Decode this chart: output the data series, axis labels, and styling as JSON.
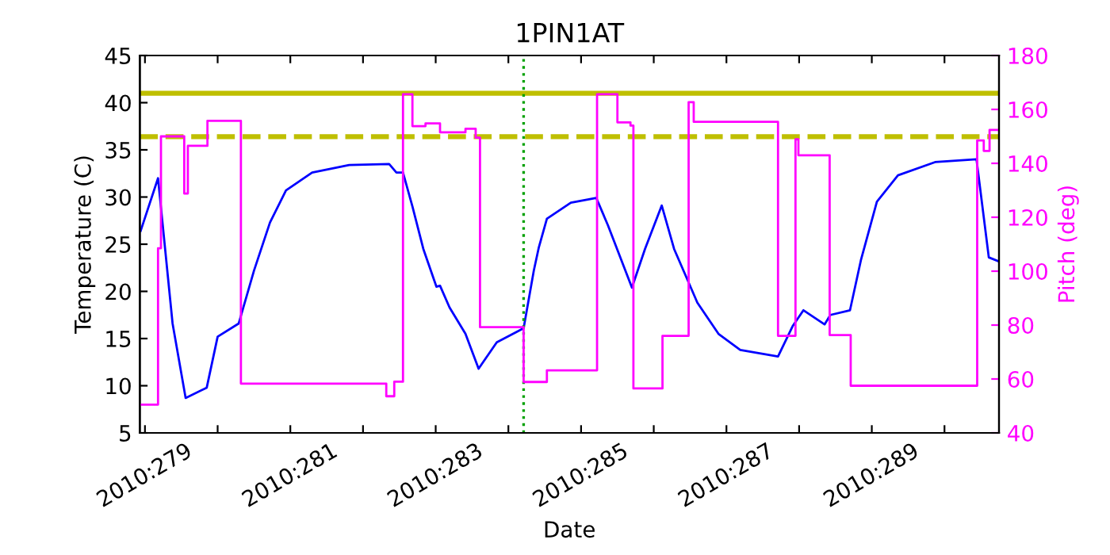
{
  "chart_data": {
    "type": "line",
    "title": "1PIN1AT",
    "xlabel": "Date",
    "ylabel": "Temperature (C)",
    "y2label": "Pitch (deg)",
    "xlim": [
      "2010-10-05T22:19",
      "2010-10-17T18:00"
    ],
    "xticks": [
      {
        "value": "2010-10-06",
        "label": "2010:279"
      },
      {
        "value": "2010-10-07",
        "label": null
      },
      {
        "value": "2010-10-08",
        "label": "2010:281"
      },
      {
        "value": "2010-10-09",
        "label": null
      },
      {
        "value": "2010-10-10",
        "label": "2010:283"
      },
      {
        "value": "2010-10-11",
        "label": null
      },
      {
        "value": "2010-10-12",
        "label": "2010:285"
      },
      {
        "value": "2010-10-13",
        "label": null
      },
      {
        "value": "2010-10-14",
        "label": "2010:287"
      },
      {
        "value": "2010-10-15",
        "label": null
      },
      {
        "value": "2010-10-16",
        "label": "2010:289"
      },
      {
        "value": "2010-10-17",
        "label": null
      }
    ],
    "ylim": [
      5,
      45
    ],
    "yticks": [
      5,
      10,
      15,
      20,
      25,
      30,
      35,
      40,
      45
    ],
    "y2lim": [
      40,
      180
    ],
    "y2ticks": [
      40,
      60,
      80,
      100,
      120,
      140,
      160,
      180
    ],
    "grid": false,
    "marker": "none",
    "line_style": "solid",
    "series": [
      {
        "color": "#0000ff",
        "x": [
          "2010-10-05T22:34",
          "2010-10-06T04:19",
          "2010-10-06T09:07",
          "2010-10-06T13:26",
          "2010-10-06T20:24",
          "2010-10-07T00:00",
          "2010-10-07T06:58",
          "2010-10-07T12:00",
          "2010-10-07T17:17",
          "2010-10-07T22:34",
          "2010-10-08T07:12",
          "2010-10-08T19:26",
          "2010-10-09T08:38",
          "2010-10-09T11:02",
          "2010-10-09T13:12",
          "2010-10-09T16:19",
          "2010-10-09T19:55",
          "2010-10-10T00:14",
          "2010-10-10T01:26",
          "2010-10-10T04:34",
          "2010-10-10T09:50",
          "2010-10-10T14:10",
          "2010-10-10T20:10",
          "2010-10-11T05:02",
          "2010-10-11T08:24",
          "2010-10-11T10:05",
          "2010-10-11T12:43",
          "2010-10-11T20:38",
          "2010-10-12T05:02",
          "2010-10-12T08:53",
          "2010-10-12T16:48",
          "2010-10-12T21:07",
          "2010-10-13T02:38",
          "2010-10-13T06:43",
          "2010-10-13T11:02",
          "2010-10-13T14:24",
          "2010-10-13T21:22",
          "2010-10-14T04:34",
          "2010-10-14T17:02",
          "2010-10-14T21:50",
          "2010-10-15T01:26",
          "2010-10-15T08:24",
          "2010-10-15T10:19",
          "2010-10-15T16:48",
          "2010-10-15T20:24",
          "2010-10-16T01:41",
          "2010-10-16T08:38",
          "2010-10-16T20:53",
          "2010-10-17T10:34",
          "2010-10-17T14:38",
          "2010-10-17T17:46"
        ],
        "values": [
          26.4,
          32.0,
          16.6,
          8.7,
          9.8,
          15.2,
          16.6,
          22.2,
          27.3,
          30.7,
          32.6,
          33.4,
          33.5,
          32.6,
          32.6,
          29.0,
          24.5,
          20.5,
          20.6,
          18.3,
          15.5,
          11.8,
          14.6,
          16.1,
          22.2,
          24.7,
          27.7,
          29.4,
          29.9,
          27.0,
          20.4,
          24.5,
          29.1,
          24.5,
          21.3,
          18.8,
          15.5,
          13.8,
          13.1,
          16.3,
          18.0,
          16.5,
          17.5,
          18.0,
          23.3,
          29.5,
          32.3,
          33.7,
          34.0,
          23.6,
          23.2
        ]
      },
      {
        "color": "#ff00ff",
        "type": "step",
        "axis": "y2",
        "x": [
          "2010-10-05T22:34",
          "2010-10-06T04:19",
          "2010-10-06T05:17",
          "2010-10-06T12:58",
          "2010-10-06T14:10",
          "2010-10-06T20:38",
          "2010-10-07T07:41",
          "2010-10-09T07:41",
          "2010-10-09T10:19",
          "2010-10-09T13:12",
          "2010-10-09T16:19",
          "2010-10-09T20:38",
          "2010-10-10T01:26",
          "2010-10-10T09:50",
          "2010-10-10T13:12",
          "2010-10-10T14:38",
          "2010-10-11T05:02",
          "2010-10-11T12:43",
          "2010-10-12T05:17",
          "2010-10-12T12:00",
          "2010-10-12T16:19",
          "2010-10-12T17:17",
          "2010-10-13T02:53",
          "2010-10-13T11:31",
          "2010-10-13T13:12",
          "2010-10-14T17:02",
          "2010-10-14T22:48",
          "2010-10-14T23:46",
          "2010-10-15T10:05",
          "2010-10-15T17:02",
          "2010-10-17T10:48",
          "2010-10-17T12:58",
          "2010-10-17T14:53",
          "2010-10-17T17:46"
        ],
        "values": [
          50.5,
          108.5,
          150,
          128.8,
          146.5,
          155.8,
          58.3,
          53.6,
          59,
          165.6,
          153.8,
          154.8,
          151.5,
          152.8,
          149.5,
          79.2,
          58.9,
          63.2,
          165.6,
          155.2,
          154.0,
          56.5,
          76.0,
          162.7,
          155.4,
          76.0,
          148.9,
          143.0,
          76.3,
          57.5,
          148.5,
          144.6,
          152.4,
          152.4
        ]
      }
    ],
    "ref_lines": [
      {
        "axis": "y",
        "value": 41,
        "color": "#bfbf00",
        "line_style": "solid"
      },
      {
        "axis": "y",
        "value": 36.4,
        "color": "#bfbf00",
        "line_style": "dashed"
      },
      {
        "axis": "x",
        "value": "2010-10-11T05:02",
        "color": "#00a000",
        "line_style": "dotted"
      }
    ]
  }
}
